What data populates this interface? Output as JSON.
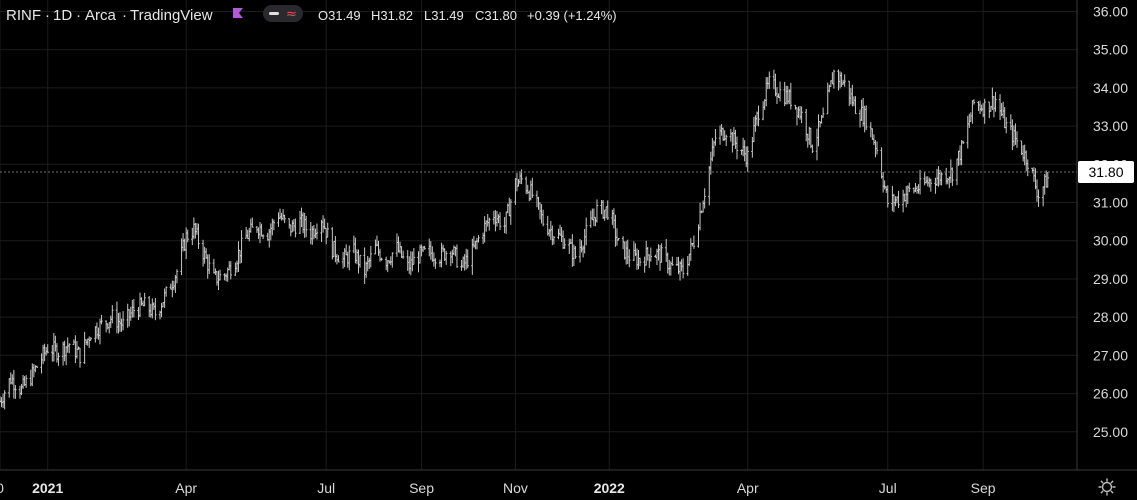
{
  "header": {
    "symbol": "RINF",
    "interval": "1D",
    "exchange": "Arca",
    "source": "TradingView",
    "flag_icon": "flag-icon",
    "flag_color": "#b25bd6",
    "toggle_icon": "toggle-icon",
    "wave_icon": "wave-icon",
    "ohlc": {
      "open": "O31.49",
      "high": "H31.82",
      "low": "L31.49",
      "close": "C31.80",
      "change": "+0.39 (+1.24%)"
    }
  },
  "price_tag": {
    "label": "31.80",
    "value": 31.8
  },
  "settings_icon": "gear-icon",
  "chart_data": {
    "type": "ohlc",
    "title": "",
    "xlabel": "",
    "ylabel": "",
    "ylim": [
      24.0,
      36.3
    ],
    "grid": true,
    "y_ticks": [
      "36.00",
      "35.00",
      "34.00",
      "33.00",
      "32.00",
      "31.00",
      "30.00",
      "29.00",
      "28.00",
      "27.00",
      "26.00",
      "25.00"
    ],
    "x_range": [
      "2020-12-01",
      "2022-11-01"
    ],
    "x_ticks": [
      {
        "label": "0",
        "date": "2020-12-01",
        "bold": false
      },
      {
        "label": "2021",
        "date": "2021-01-01",
        "bold": true
      },
      {
        "label": "Apr",
        "date": "2021-04-01",
        "bold": false
      },
      {
        "label": "Jul",
        "date": "2021-07-01",
        "bold": false
      },
      {
        "label": "Sep",
        "date": "2021-09-01",
        "bold": false
      },
      {
        "label": "Nov",
        "date": "2021-11-01",
        "bold": false
      },
      {
        "label": "2022",
        "date": "2022-01-01",
        "bold": true
      },
      {
        "label": "Apr",
        "date": "2022-04-01",
        "bold": false
      },
      {
        "label": "Jul",
        "date": "2022-07-01",
        "bold": false
      },
      {
        "label": "Sep",
        "date": "2022-09-01",
        "bold": false
      }
    ],
    "bar_color": "#c8c8c8",
    "series": [
      {
        "values": [
          [
            "2020-12-01",
            25.8
          ],
          [
            "2020-12-08",
            26.4
          ],
          [
            "2020-12-15",
            26.1
          ],
          [
            "2020-12-22",
            26.5
          ],
          [
            "2021-01-01",
            27.2
          ],
          [
            "2021-01-08",
            27.1
          ],
          [
            "2021-01-15",
            27.3
          ],
          [
            "2021-01-22",
            27.0
          ],
          [
            "2021-01-29",
            27.6
          ],
          [
            "2021-02-05",
            27.8
          ],
          [
            "2021-02-12",
            28.0
          ],
          [
            "2021-02-19",
            27.8
          ],
          [
            "2021-02-26",
            28.2
          ],
          [
            "2021-03-05",
            28.3
          ],
          [
            "2021-03-12",
            28.1
          ],
          [
            "2021-03-19",
            28.6
          ],
          [
            "2021-03-26",
            29.2
          ],
          [
            "2021-04-01",
            30.1
          ],
          [
            "2021-04-06",
            30.3
          ],
          [
            "2021-04-12",
            29.7
          ],
          [
            "2021-04-19",
            29.0
          ],
          [
            "2021-04-26",
            29.1
          ],
          [
            "2021-05-03",
            29.5
          ],
          [
            "2021-05-10",
            30.1
          ],
          [
            "2021-05-17",
            30.4
          ],
          [
            "2021-05-24",
            30.2
          ],
          [
            "2021-05-31",
            30.7
          ],
          [
            "2021-06-07",
            30.3
          ],
          [
            "2021-06-14",
            30.5
          ],
          [
            "2021-06-21",
            30.2
          ],
          [
            "2021-06-28",
            30.6
          ],
          [
            "2021-07-05",
            29.8
          ],
          [
            "2021-07-12",
            29.5
          ],
          [
            "2021-07-19",
            29.7
          ],
          [
            "2021-07-26",
            29.2
          ],
          [
            "2021-08-02",
            29.8
          ],
          [
            "2021-08-09",
            29.5
          ],
          [
            "2021-08-16",
            29.8
          ],
          [
            "2021-08-23",
            29.3
          ],
          [
            "2021-08-30",
            29.6
          ],
          [
            "2021-09-06",
            29.7
          ],
          [
            "2021-09-13",
            29.6
          ],
          [
            "2021-09-20",
            29.8
          ],
          [
            "2021-09-27",
            29.3
          ],
          [
            "2021-10-04",
            29.7
          ],
          [
            "2021-10-11",
            30.3
          ],
          [
            "2021-10-18",
            30.7
          ],
          [
            "2021-10-25",
            30.4
          ],
          [
            "2021-11-01",
            31.5
          ],
          [
            "2021-11-05",
            31.6
          ],
          [
            "2021-11-12",
            31.2
          ],
          [
            "2021-11-19",
            30.5
          ],
          [
            "2021-11-26",
            30.2
          ],
          [
            "2021-12-03",
            30.0
          ],
          [
            "2021-12-10",
            29.6
          ],
          [
            "2021-12-17",
            30.2
          ],
          [
            "2021-12-24",
            30.8
          ],
          [
            "2022-01-01",
            30.8
          ],
          [
            "2022-01-07",
            29.9
          ],
          [
            "2022-01-14",
            29.6
          ],
          [
            "2022-01-21",
            29.5
          ],
          [
            "2022-01-28",
            29.7
          ],
          [
            "2022-02-04",
            29.6
          ],
          [
            "2022-02-11",
            29.3
          ],
          [
            "2022-02-18",
            29.2
          ],
          [
            "2022-02-25",
            30.0
          ],
          [
            "2022-03-04",
            31.3
          ],
          [
            "2022-03-11",
            32.7
          ],
          [
            "2022-03-18",
            32.9
          ],
          [
            "2022-03-25",
            32.5
          ],
          [
            "2022-04-01",
            32.2
          ],
          [
            "2022-04-08",
            33.4
          ],
          [
            "2022-04-15",
            34.1
          ],
          [
            "2022-04-22",
            33.9
          ],
          [
            "2022-04-29",
            33.7
          ],
          [
            "2022-05-06",
            33.3
          ],
          [
            "2022-05-13",
            32.5
          ],
          [
            "2022-05-20",
            33.2
          ],
          [
            "2022-05-27",
            34.4
          ],
          [
            "2022-06-03",
            34.1
          ],
          [
            "2022-06-10",
            33.5
          ],
          [
            "2022-06-17",
            33.2
          ],
          [
            "2022-06-24",
            32.4
          ],
          [
            "2022-07-01",
            31.0
          ],
          [
            "2022-07-08",
            31.1
          ],
          [
            "2022-07-15",
            31.3
          ],
          [
            "2022-07-22",
            31.4
          ],
          [
            "2022-07-29",
            31.6
          ],
          [
            "2022-08-05",
            31.7
          ],
          [
            "2022-08-12",
            31.8
          ],
          [
            "2022-08-19",
            32.5
          ],
          [
            "2022-08-26",
            33.6
          ],
          [
            "2022-09-02",
            33.5
          ],
          [
            "2022-09-09",
            33.7
          ],
          [
            "2022-09-16",
            33.0
          ],
          [
            "2022-09-23",
            32.6
          ],
          [
            "2022-09-30",
            32.1
          ],
          [
            "2022-10-07",
            31.2
          ],
          [
            "2022-10-14",
            31.7
          ]
        ]
      }
    ],
    "last_close": 31.8
  }
}
